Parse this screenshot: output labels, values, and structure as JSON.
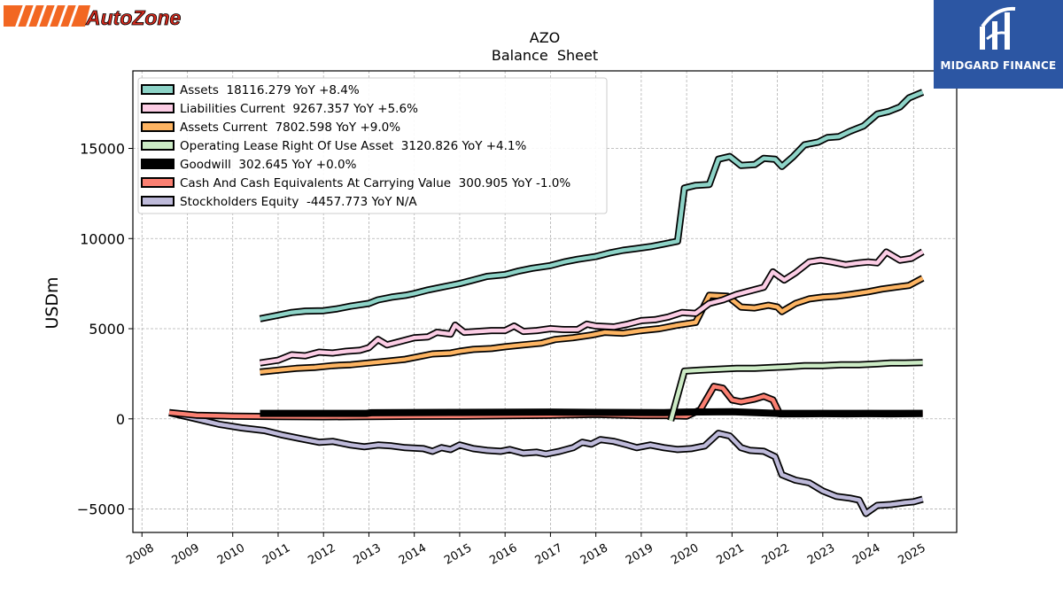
{
  "header": {
    "title": "AZO",
    "subtitle": "Balance  Sheet"
  },
  "logos": {
    "left_brand": "AutoZone",
    "right_brand": "MIDGARD FINANCE"
  },
  "colors": {
    "assets": "#8dd3c7",
    "liabilities_current": "#fccde5",
    "assets_current": "#fdb462",
    "operating_lease": "#ccebc5",
    "goodwill": "#000000",
    "cash": "#fb8072",
    "equity": "#bebada",
    "autozone_orange": "#f26722",
    "autozone_red": "#d52b1e",
    "midgard_blue": "#2c56a3"
  },
  "chart_data": {
    "type": "line",
    "title": "AZO",
    "subtitle": "Balance  Sheet",
    "ylabel": "USDm",
    "xlabel": "",
    "xlim": [
      2007.8,
      2025.95
    ],
    "ylim": [
      -6300,
      19300
    ],
    "x_ticks": [
      "2008",
      "2009",
      "2010",
      "2011",
      "2012",
      "2013",
      "2014",
      "2015",
      "2016",
      "2017",
      "2018",
      "2019",
      "2020",
      "2021",
      "2022",
      "2023",
      "2024",
      "2025"
    ],
    "y_ticks": [
      "−5000",
      "0",
      "5000",
      "10000",
      "15000"
    ],
    "y_tick_values": [
      -5000,
      0,
      5000,
      10000,
      15000
    ],
    "grid": true,
    "legend_position": "upper-left",
    "series": [
      {
        "key": "assets",
        "name": "Assets  18116.279 YoY +8.4%",
        "points": [
          [
            2010.6,
            5550
          ],
          [
            2011.0,
            5750
          ],
          [
            2011.3,
            5900
          ],
          [
            2011.6,
            5980
          ],
          [
            2012.0,
            6000
          ],
          [
            2012.3,
            6100
          ],
          [
            2012.6,
            6250
          ],
          [
            2013.0,
            6400
          ],
          [
            2013.2,
            6600
          ],
          [
            2013.5,
            6750
          ],
          [
            2013.8,
            6850
          ],
          [
            2014.0,
            6950
          ],
          [
            2014.3,
            7150
          ],
          [
            2014.6,
            7300
          ],
          [
            2015.0,
            7500
          ],
          [
            2015.3,
            7700
          ],
          [
            2015.6,
            7900
          ],
          [
            2016.0,
            8000
          ],
          [
            2016.3,
            8200
          ],
          [
            2016.6,
            8350
          ],
          [
            2017.0,
            8500
          ],
          [
            2017.3,
            8700
          ],
          [
            2017.6,
            8850
          ],
          [
            2018.0,
            9000
          ],
          [
            2018.3,
            9200
          ],
          [
            2018.6,
            9350
          ],
          [
            2018.9,
            9450
          ],
          [
            2019.2,
            9550
          ],
          [
            2019.5,
            9700
          ],
          [
            2019.8,
            9850
          ],
          [
            2019.95,
            12800
          ],
          [
            2020.2,
            12950
          ],
          [
            2020.5,
            13000
          ],
          [
            2020.7,
            14400
          ],
          [
            2020.95,
            14550
          ],
          [
            2021.2,
            14050
          ],
          [
            2021.5,
            14100
          ],
          [
            2021.7,
            14450
          ],
          [
            2021.95,
            14400
          ],
          [
            2022.1,
            14000
          ],
          [
            2022.35,
            14550
          ],
          [
            2022.6,
            15200
          ],
          [
            2022.9,
            15350
          ],
          [
            2023.1,
            15600
          ],
          [
            2023.35,
            15650
          ],
          [
            2023.6,
            15950
          ],
          [
            2023.9,
            16250
          ],
          [
            2024.2,
            16900
          ],
          [
            2024.45,
            17050
          ],
          [
            2024.7,
            17300
          ],
          [
            2024.9,
            17800
          ],
          [
            2025.2,
            18116
          ]
        ]
      },
      {
        "key": "liabilities_current",
        "name": "Liabilities Current  9267.357 YoY +5.6%",
        "points": [
          [
            2010.6,
            3100
          ],
          [
            2011.0,
            3250
          ],
          [
            2011.3,
            3550
          ],
          [
            2011.6,
            3500
          ],
          [
            2011.9,
            3700
          ],
          [
            2012.2,
            3650
          ],
          [
            2012.5,
            3750
          ],
          [
            2012.8,
            3800
          ],
          [
            2013.0,
            3950
          ],
          [
            2013.2,
            4400
          ],
          [
            2013.4,
            4100
          ],
          [
            2013.7,
            4300
          ],
          [
            2014.0,
            4500
          ],
          [
            2014.3,
            4550
          ],
          [
            2014.5,
            4800
          ],
          [
            2014.8,
            4700
          ],
          [
            2014.9,
            5200
          ],
          [
            2015.1,
            4800
          ],
          [
            2015.4,
            4850
          ],
          [
            2015.7,
            4900
          ],
          [
            2016.0,
            4900
          ],
          [
            2016.2,
            5150
          ],
          [
            2016.4,
            4850
          ],
          [
            2016.7,
            4900
          ],
          [
            2017.0,
            5000
          ],
          [
            2017.3,
            4950
          ],
          [
            2017.6,
            4950
          ],
          [
            2017.8,
            5250
          ],
          [
            2018.0,
            5150
          ],
          [
            2018.4,
            5100
          ],
          [
            2018.7,
            5250
          ],
          [
            2019.0,
            5450
          ],
          [
            2019.3,
            5500
          ],
          [
            2019.6,
            5650
          ],
          [
            2019.9,
            5900
          ],
          [
            2020.2,
            5850
          ],
          [
            2020.5,
            6400
          ],
          [
            2020.8,
            6600
          ],
          [
            2021.1,
            6900
          ],
          [
            2021.4,
            7100
          ],
          [
            2021.7,
            7300
          ],
          [
            2021.9,
            8150
          ],
          [
            2022.15,
            7700
          ],
          [
            2022.4,
            8100
          ],
          [
            2022.7,
            8700
          ],
          [
            2022.95,
            8800
          ],
          [
            2023.2,
            8700
          ],
          [
            2023.5,
            8550
          ],
          [
            2023.8,
            8650
          ],
          [
            2024.0,
            8700
          ],
          [
            2024.2,
            8650
          ],
          [
            2024.4,
            9250
          ],
          [
            2024.7,
            8800
          ],
          [
            2024.95,
            8900
          ],
          [
            2025.2,
            9267
          ]
        ]
      },
      {
        "key": "assets_current",
        "name": "Assets Current  7802.598 YoY +9.0%",
        "points": [
          [
            2010.6,
            2600
          ],
          [
            2011.0,
            2700
          ],
          [
            2011.4,
            2800
          ],
          [
            2011.8,
            2850
          ],
          [
            2012.2,
            2950
          ],
          [
            2012.6,
            3000
          ],
          [
            2013.0,
            3100
          ],
          [
            2013.4,
            3200
          ],
          [
            2013.8,
            3300
          ],
          [
            2014.1,
            3450
          ],
          [
            2014.4,
            3600
          ],
          [
            2014.8,
            3650
          ],
          [
            2015.0,
            3750
          ],
          [
            2015.3,
            3850
          ],
          [
            2015.7,
            3900
          ],
          [
            2016.0,
            4000
          ],
          [
            2016.4,
            4100
          ],
          [
            2016.8,
            4200
          ],
          [
            2017.1,
            4400
          ],
          [
            2017.5,
            4500
          ],
          [
            2017.9,
            4650
          ],
          [
            2018.2,
            4800
          ],
          [
            2018.6,
            4750
          ],
          [
            2019.0,
            4900
          ],
          [
            2019.4,
            5000
          ],
          [
            2019.8,
            5200
          ],
          [
            2020.2,
            5350
          ],
          [
            2020.5,
            6850
          ],
          [
            2020.9,
            6800
          ],
          [
            2021.2,
            6200
          ],
          [
            2021.5,
            6150
          ],
          [
            2021.8,
            6300
          ],
          [
            2022.0,
            6200
          ],
          [
            2022.1,
            5950
          ],
          [
            2022.4,
            6400
          ],
          [
            2022.7,
            6650
          ],
          [
            2023.0,
            6750
          ],
          [
            2023.3,
            6800
          ],
          [
            2023.6,
            6900
          ],
          [
            2024.0,
            7050
          ],
          [
            2024.3,
            7200
          ],
          [
            2024.6,
            7300
          ],
          [
            2024.9,
            7400
          ],
          [
            2025.2,
            7803
          ]
        ]
      },
      {
        "key": "operating_lease",
        "name": "Operating Lease Right Of Use Asset  3120.826 YoY +4.1%",
        "points": [
          [
            2019.65,
            -100
          ],
          [
            2019.95,
            2650
          ],
          [
            2020.3,
            2700
          ],
          [
            2020.7,
            2750
          ],
          [
            2021.1,
            2800
          ],
          [
            2021.5,
            2800
          ],
          [
            2021.9,
            2850
          ],
          [
            2022.3,
            2900
          ],
          [
            2022.6,
            2950
          ],
          [
            2023.0,
            2950
          ],
          [
            2023.4,
            3000
          ],
          [
            2023.8,
            3000
          ],
          [
            2024.2,
            3050
          ],
          [
            2024.5,
            3100
          ],
          [
            2024.8,
            3100
          ],
          [
            2025.2,
            3121
          ]
        ]
      },
      {
        "key": "goodwill",
        "name": "Goodwill  302.645 YoY +0.0%",
        "points": [
          [
            2010.6,
            302
          ],
          [
            2012.95,
            302
          ],
          [
            2013.05,
            340
          ],
          [
            2015.0,
            360
          ],
          [
            2017.0,
            380
          ],
          [
            2018.0,
            360
          ],
          [
            2019.5,
            350
          ],
          [
            2020.0,
            380
          ],
          [
            2021.0,
            390
          ],
          [
            2022.0,
            302
          ],
          [
            2025.2,
            303
          ]
        ]
      },
      {
        "key": "cash",
        "name": "Cash And Cash Equivalents At Carrying Value  300.905 YoY -1.0%",
        "points": [
          [
            2008.6,
            350
          ],
          [
            2009.2,
            200
          ],
          [
            2010.0,
            150
          ],
          [
            2011.0,
            120
          ],
          [
            2012.0,
            110
          ],
          [
            2013.0,
            120
          ],
          [
            2014.0,
            140
          ],
          [
            2015.0,
            150
          ],
          [
            2016.0,
            170
          ],
          [
            2017.0,
            200
          ],
          [
            2018.0,
            250
          ],
          [
            2019.0,
            180
          ],
          [
            2019.6,
            180
          ],
          [
            2020.0,
            150
          ],
          [
            2020.3,
            500
          ],
          [
            2020.6,
            1800
          ],
          [
            2020.8,
            1700
          ],
          [
            2021.0,
            1050
          ],
          [
            2021.2,
            950
          ],
          [
            2021.5,
            1100
          ],
          [
            2021.7,
            1250
          ],
          [
            2021.9,
            1050
          ],
          [
            2022.05,
            280
          ],
          [
            2022.5,
            280
          ],
          [
            2023.0,
            290
          ],
          [
            2023.5,
            280
          ],
          [
            2024.0,
            290
          ],
          [
            2024.5,
            280
          ],
          [
            2025.2,
            301
          ]
        ]
      },
      {
        "key": "equity",
        "name": "Stockholders Equity  -4457.773 YoY N/A",
        "points": [
          [
            2008.6,
            350
          ],
          [
            2009.2,
            0
          ],
          [
            2009.7,
            -300
          ],
          [
            2010.2,
            -500
          ],
          [
            2010.7,
            -650
          ],
          [
            2011.1,
            -900
          ],
          [
            2011.5,
            -1100
          ],
          [
            2011.9,
            -1300
          ],
          [
            2012.2,
            -1250
          ],
          [
            2012.6,
            -1450
          ],
          [
            2012.9,
            -1550
          ],
          [
            2013.2,
            -1450
          ],
          [
            2013.5,
            -1500
          ],
          [
            2013.8,
            -1600
          ],
          [
            2014.2,
            -1650
          ],
          [
            2014.4,
            -1800
          ],
          [
            2014.6,
            -1600
          ],
          [
            2014.8,
            -1700
          ],
          [
            2015.0,
            -1450
          ],
          [
            2015.3,
            -1650
          ],
          [
            2015.6,
            -1750
          ],
          [
            2015.9,
            -1800
          ],
          [
            2016.1,
            -1700
          ],
          [
            2016.4,
            -1900
          ],
          [
            2016.7,
            -1850
          ],
          [
            2016.9,
            -1950
          ],
          [
            2017.2,
            -1800
          ],
          [
            2017.5,
            -1600
          ],
          [
            2017.7,
            -1300
          ],
          [
            2017.9,
            -1400
          ],
          [
            2018.1,
            -1150
          ],
          [
            2018.4,
            -1250
          ],
          [
            2018.7,
            -1450
          ],
          [
            2018.9,
            -1600
          ],
          [
            2019.2,
            -1450
          ],
          [
            2019.5,
            -1600
          ],
          [
            2019.8,
            -1700
          ],
          [
            2020.1,
            -1650
          ],
          [
            2020.4,
            -1500
          ],
          [
            2020.7,
            -800
          ],
          [
            2020.95,
            -950
          ],
          [
            2021.2,
            -1600
          ],
          [
            2021.4,
            -1750
          ],
          [
            2021.7,
            -1800
          ],
          [
            2021.95,
            -2100
          ],
          [
            2022.1,
            -3100
          ],
          [
            2022.4,
            -3400
          ],
          [
            2022.7,
            -3550
          ],
          [
            2023.0,
            -4000
          ],
          [
            2023.3,
            -4300
          ],
          [
            2023.6,
            -4400
          ],
          [
            2023.8,
            -4500
          ],
          [
            2023.95,
            -5250
          ],
          [
            2024.2,
            -4800
          ],
          [
            2024.5,
            -4750
          ],
          [
            2024.8,
            -4650
          ],
          [
            2025.0,
            -4600
          ],
          [
            2025.2,
            -4458
          ]
        ]
      }
    ]
  }
}
